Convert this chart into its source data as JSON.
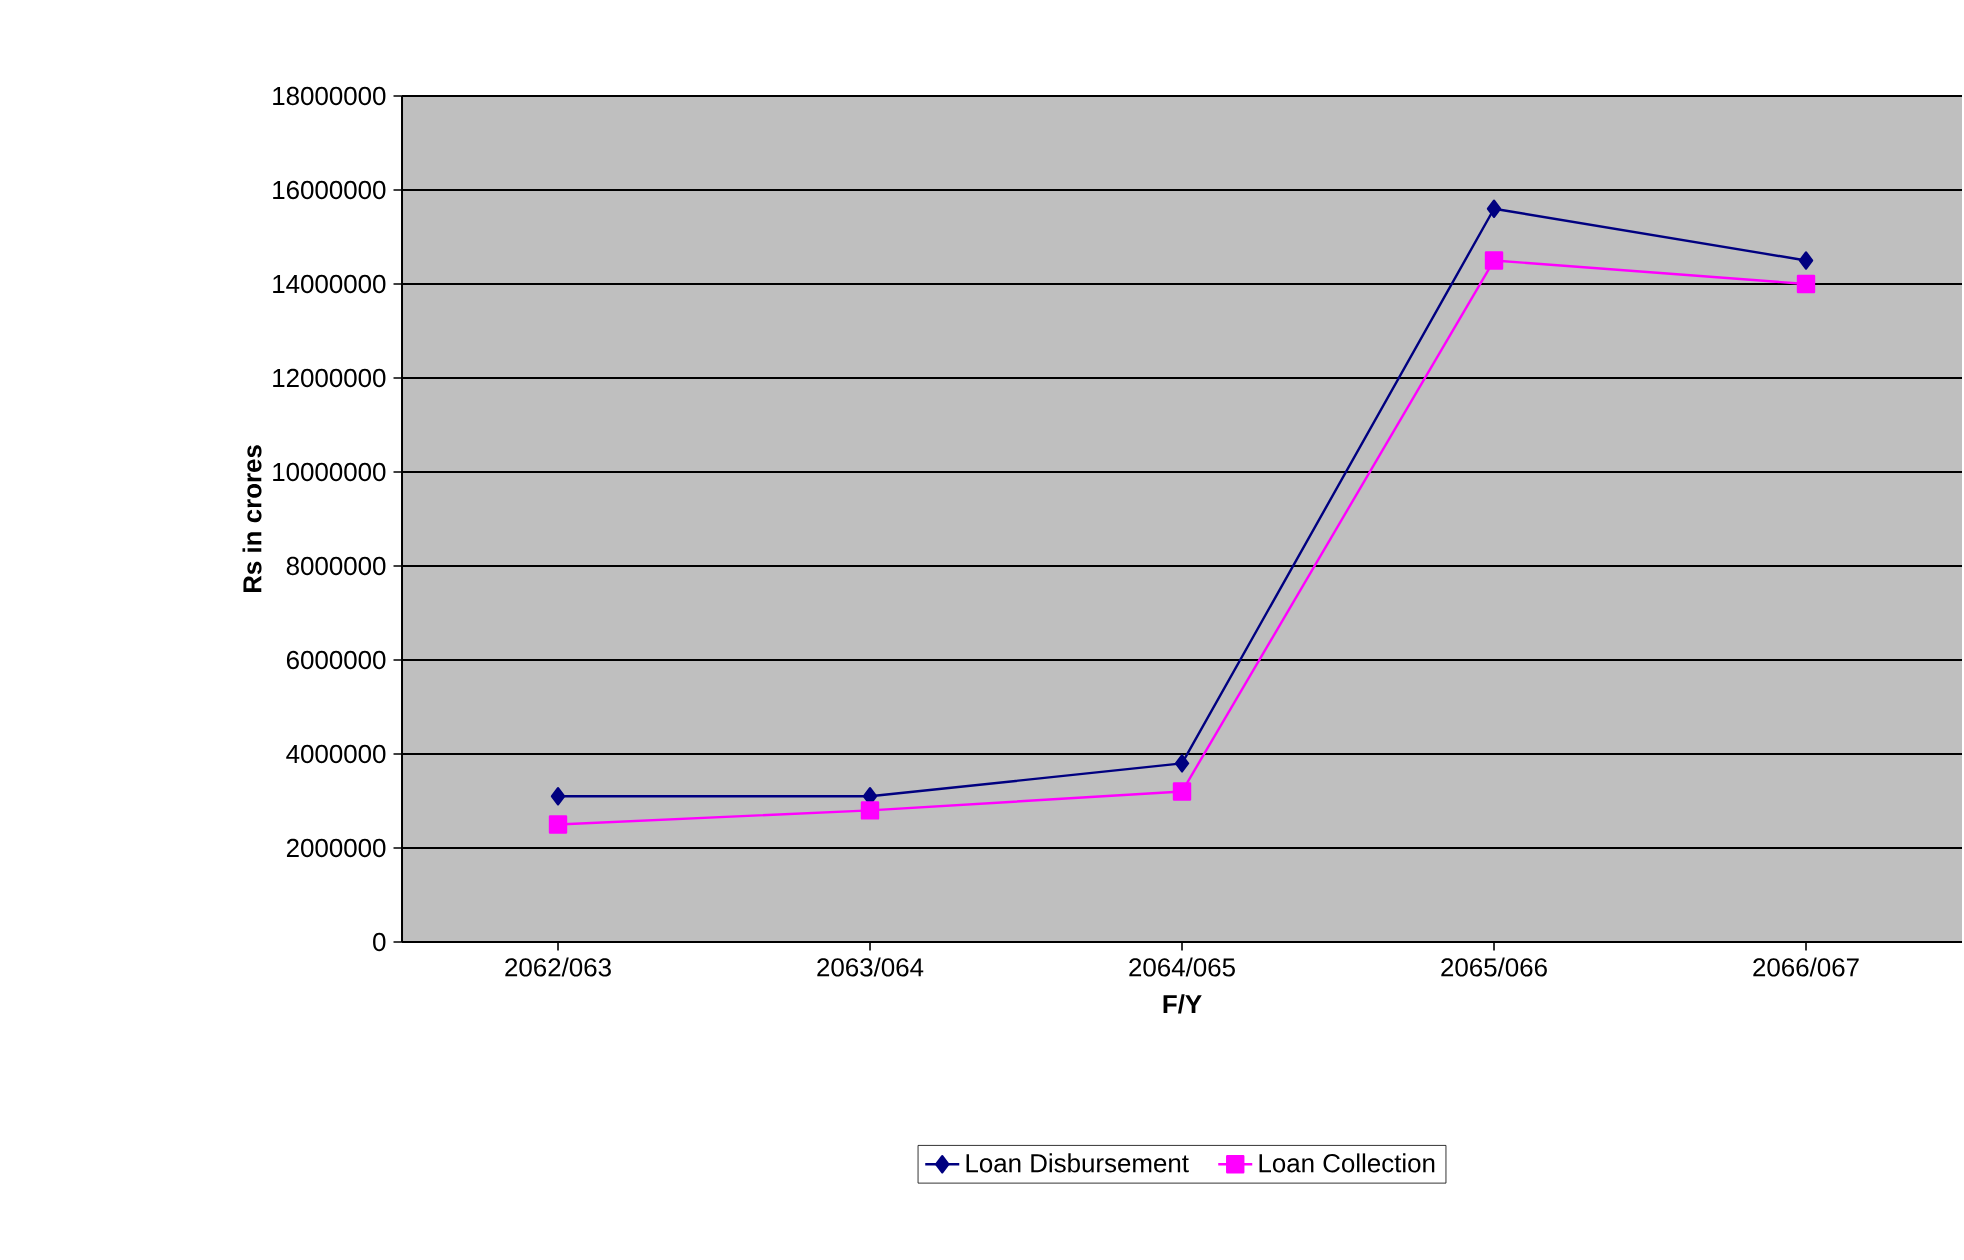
{
  "chart_data": {
    "type": "line",
    "xlabel": "F/Y",
    "ylabel": "Rs in crores",
    "categories": [
      "2062/063",
      "2063/064",
      "2064/065",
      "2065/066",
      "2066/067"
    ],
    "series": [
      {
        "name": "Loan Disbursement",
        "color": "#000080",
        "marker": "diamond",
        "values": [
          3100000,
          3100000,
          3800000,
          15600000,
          14500000
        ]
      },
      {
        "name": "Loan Collection",
        "color": "#ff00ff",
        "marker": "square",
        "values": [
          2500000,
          2800000,
          3200000,
          14500000,
          14000000
        ]
      }
    ],
    "ylim": [
      0,
      18000000
    ],
    "yticks": [
      0,
      2000000,
      4000000,
      6000000,
      8000000,
      10000000,
      12000000,
      14000000,
      16000000,
      18000000
    ],
    "grid": "y",
    "legend": "bottom"
  }
}
